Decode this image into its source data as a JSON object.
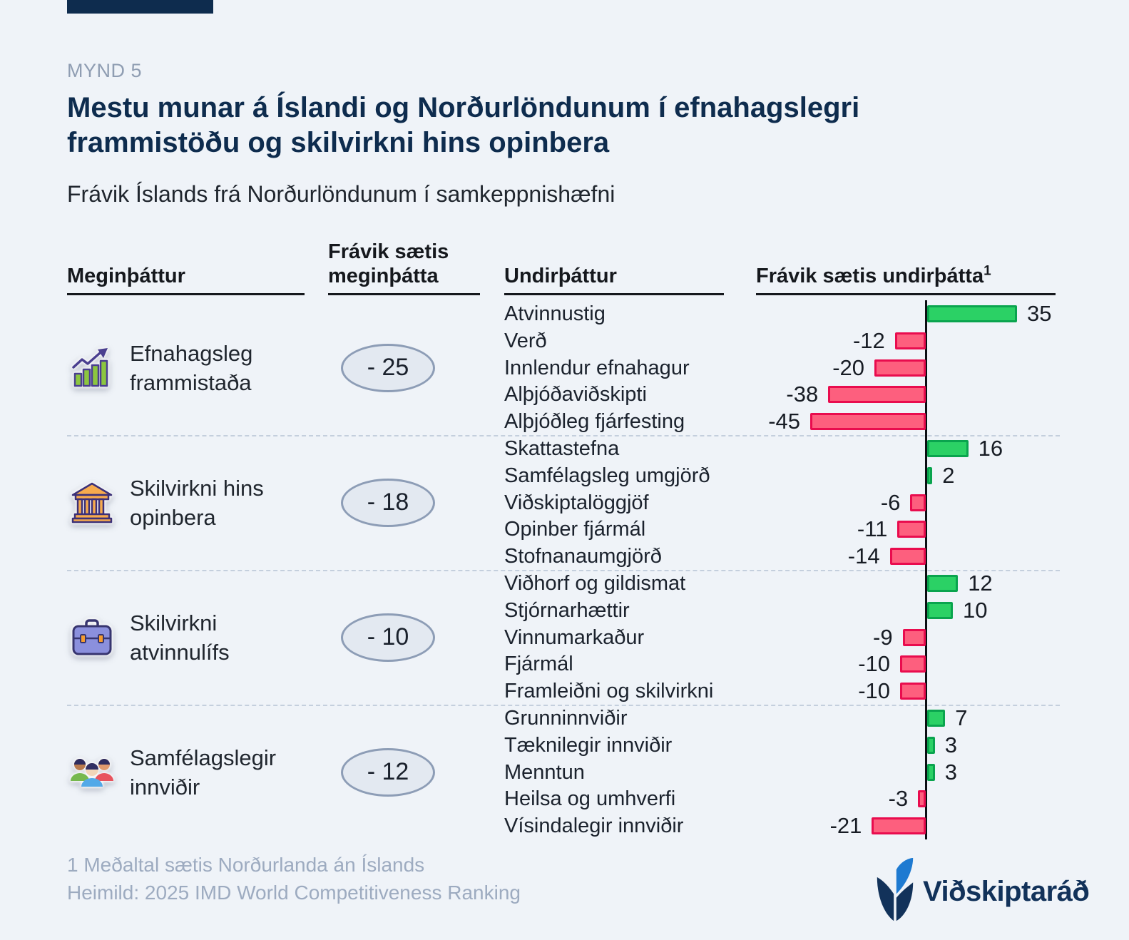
{
  "page": {
    "figure_label": "MYND 5",
    "title_line1": "Mestu munar á Íslandi og Norðurlöndunum í efnahagslegri",
    "title_line2": "frammistöðu og skilvirkni hins opinbera",
    "subtitle": "Frávik Íslands frá Norðurlöndunum í samkeppnishæfni"
  },
  "table": {
    "col_main_factor": "Meginþáttur",
    "col_main_deviation": "Frávik sætis meginþátta",
    "col_sub_factor": "Undirþáttur",
    "col_sub_deviation": "Frávik sætis undirþátta",
    "col_sub_deviation_footnote_mark": "1"
  },
  "footer": {
    "note": "1 Meðaltal sætis Norðurlanda án Íslands",
    "source": "Heimild: 2025 IMD World Competitiveness Ranking"
  },
  "logo": {
    "name": "Viðskiptaráð"
  },
  "colors": {
    "background": "#eff3f8",
    "navy": "#0e2c4e",
    "positive_fill": "#2bd165",
    "positive_border": "#0aa44e",
    "negative_fill": "#fd5f7e",
    "negative_border": "#e90c4e",
    "badge_fill": "#e3e9f1",
    "badge_border": "#8d9db6",
    "separator": "#c4cfdd",
    "logo_blue": "#1e7ad1"
  },
  "chart_data": {
    "type": "bar",
    "orientation": "horizontal",
    "value_meaning": "Frávik sætis (rank deviation of Iceland vs Nordics)",
    "axis_zero_shared": true,
    "groups": [
      {
        "icon": "growth-chart-icon",
        "label": "Efnahagsleg frammistaða",
        "main_deviation": "- 25",
        "rows": [
          {
            "label": "Atvinnustig",
            "value": 35
          },
          {
            "label": "Verð",
            "value": -12
          },
          {
            "label": "Innlendur efnahagur",
            "value": -20
          },
          {
            "label": "Alþjóðaviðskipti",
            "value": -38
          },
          {
            "label": "Alþjóðleg fjárfesting",
            "value": -45
          }
        ]
      },
      {
        "icon": "government-building-icon",
        "label": "Skilvirkni hins opinbera",
        "main_deviation": "- 18",
        "rows": [
          {
            "label": "Skattastefna",
            "value": 16
          },
          {
            "label": "Samfélagsleg umgjörð",
            "value": 2
          },
          {
            "label": "Viðskiptalöggjöf",
            "value": -6
          },
          {
            "label": "Opinber fjármál",
            "value": -11
          },
          {
            "label": "Stofnanaumgjörð",
            "value": -14
          }
        ]
      },
      {
        "icon": "briefcase-icon",
        "label": "Skilvirkni atvinnulífs",
        "main_deviation": "- 10",
        "rows": [
          {
            "label": "Viðhorf og gildismat",
            "value": 12
          },
          {
            "label": "Stjórnarhættir",
            "value": 10
          },
          {
            "label": "Vinnumarkaður",
            "value": -9
          },
          {
            "label": "Fjármál",
            "value": -10
          },
          {
            "label": "Framleiðni og skilvirkni",
            "value": -10
          }
        ]
      },
      {
        "icon": "people-group-icon",
        "label": "Samfélagslegir innviðir",
        "main_deviation": "- 12",
        "rows": [
          {
            "label": "Grunninnviðir",
            "value": 7
          },
          {
            "label": "Tæknilegir innviðir",
            "value": 3
          },
          {
            "label": "Menntun",
            "value": 3
          },
          {
            "label": "Heilsa og umhverfi",
            "value": -3
          },
          {
            "label": "Vísindalegir innviðir",
            "value": -21
          }
        ]
      }
    ]
  }
}
